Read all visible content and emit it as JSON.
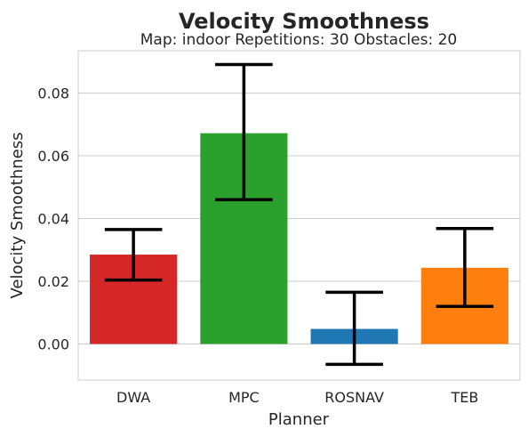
{
  "chart_data": {
    "type": "bar",
    "title": "Velocity Smoothness",
    "subtitle": "Map: indoor Repetitions: 30 Obstacles: 20",
    "xlabel": "Planner",
    "ylabel": "Velocity Smoothness",
    "categories": [
      "DWA",
      "MPC",
      "ROSNAV",
      "TEB"
    ],
    "values": [
      0.0285,
      0.0672,
      0.0048,
      0.0243
    ],
    "error_low": [
      0.0204,
      0.046,
      -0.0065,
      0.012
    ],
    "error_high": [
      0.0365,
      0.0891,
      0.0165,
      0.0368
    ],
    "colors": [
      "#d62728",
      "#2ca02c",
      "#1f77b4",
      "#ff7f0e"
    ],
    "ylim": [
      -0.0115,
      0.0935
    ],
    "yticks": [
      0.0,
      0.02,
      0.04,
      0.06,
      0.08
    ],
    "ytick_labels": [
      "0.00",
      "0.02",
      "0.04",
      "0.06",
      "0.08"
    ],
    "grid": "y",
    "legend": "none"
  }
}
